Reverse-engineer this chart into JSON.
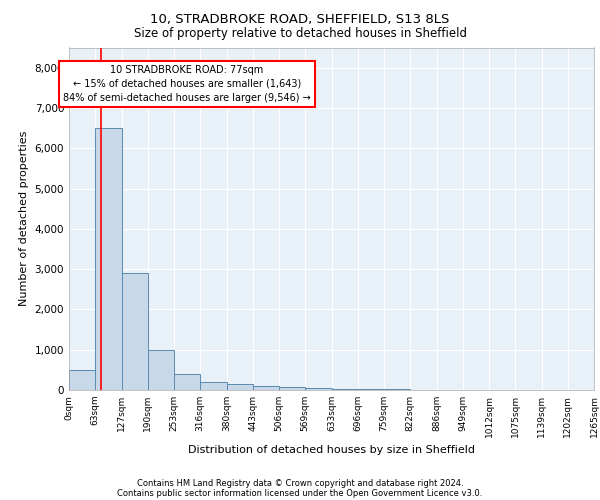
{
  "title1": "10, STRADBROKE ROAD, SHEFFIELD, S13 8LS",
  "title2": "Size of property relative to detached houses in Sheffield",
  "xlabel": "Distribution of detached houses by size in Sheffield",
  "ylabel": "Number of detached properties",
  "bar_values": [
    500,
    6500,
    2900,
    1000,
    400,
    200,
    150,
    100,
    80,
    40,
    30,
    20,
    15,
    10,
    8,
    5,
    4,
    3,
    2,
    1
  ],
  "bin_labels": [
    "0sqm",
    "63sqm",
    "127sqm",
    "190sqm",
    "253sqm",
    "316sqm",
    "380sqm",
    "443sqm",
    "506sqm",
    "569sqm",
    "633sqm",
    "696sqm",
    "759sqm",
    "822sqm",
    "886sqm",
    "949sqm",
    "1012sqm",
    "1075sqm",
    "1139sqm",
    "1202sqm",
    "1265sqm"
  ],
  "bar_color": "#c8d8e8",
  "bar_edge_color": "#5a8ab0",
  "bg_color": "#e8f0f8",
  "grid_color": "#ffffff",
  "red_line_x": 1.22,
  "annotation_text": "10 STRADBROKE ROAD: 77sqm\n← 15% of detached houses are smaller (1,643)\n84% of semi-detached houses are larger (9,546) →",
  "annotation_box_color": "#ff0000",
  "ylim": [
    0,
    8500
  ],
  "yticks": [
    0,
    1000,
    2000,
    3000,
    4000,
    5000,
    6000,
    7000,
    8000
  ],
  "footer1": "Contains HM Land Registry data © Crown copyright and database right 2024.",
  "footer2": "Contains public sector information licensed under the Open Government Licence v3.0."
}
